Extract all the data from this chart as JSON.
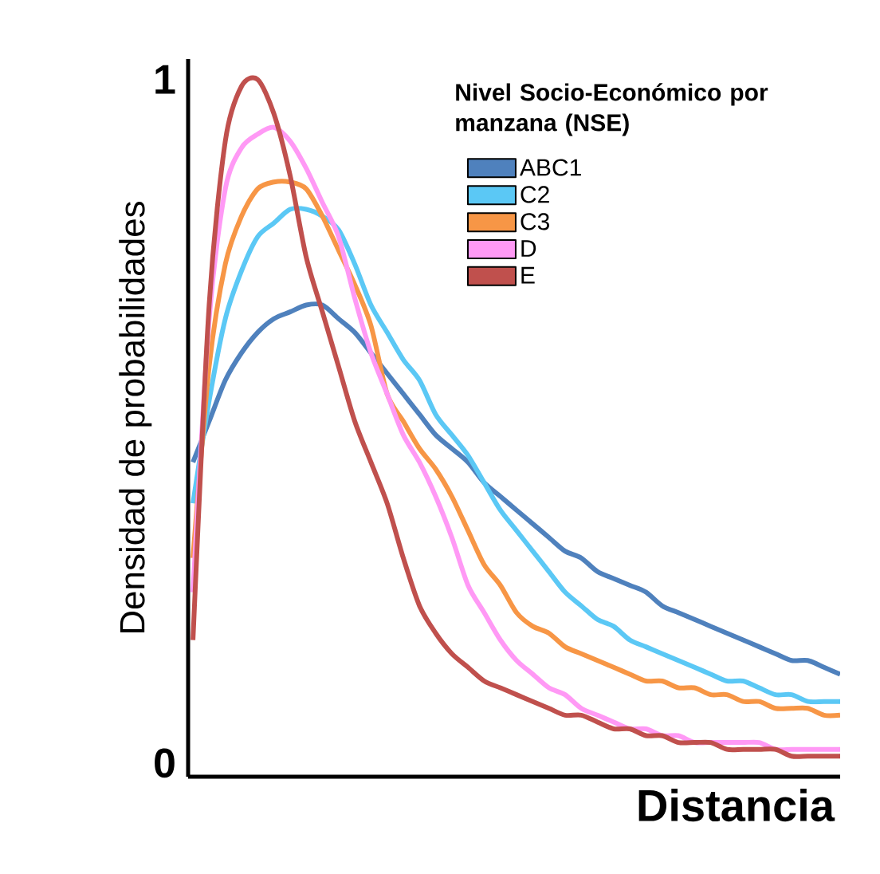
{
  "chart_data": {
    "type": "line",
    "ylabel": "Densidad de probabilidades",
    "xlabel": "Distancia",
    "legend_title": "**Nivel Socio-Económico por manzana (NSE)**",
    "legend": "top right",
    "ylim": [
      -0.02,
      1.03
    ],
    "yticks": [
      0,
      1
    ],
    "grid": false,
    "marker": "none",
    "line_style": "solid",
    "categories": [
      null,
      null,
      null,
      null,
      null,
      null,
      null,
      null,
      null,
      null,
      null,
      null,
      null,
      null,
      null,
      null,
      null,
      null,
      null,
      null,
      null,
      null,
      null,
      null,
      null,
      null,
      null,
      null,
      null,
      null,
      null,
      null,
      null,
      null,
      null,
      null,
      null,
      null,
      null,
      null,
      null
    ],
    "series": [
      {
        "name": "ABC1",
        "color": "#4f81bd",
        "values": [
          0.44,
          0.5,
          0.56,
          0.6,
          0.63,
          0.65,
          0.66,
          0.67,
          0.67,
          0.65,
          0.63,
          0.6,
          0.57,
          0.54,
          0.51,
          0.48,
          0.46,
          0.44,
          0.41,
          0.39,
          0.37,
          0.35,
          0.33,
          0.31,
          0.3,
          0.28,
          0.27,
          0.26,
          0.25,
          0.23,
          0.22,
          0.21,
          0.2,
          0.19,
          0.18,
          0.17,
          0.16,
          0.15,
          0.15,
          0.14,
          0.13
        ]
      },
      {
        "name": "C2",
        "color": "#5bc8f5",
        "values": [
          0.38,
          0.53,
          0.65,
          0.72,
          0.77,
          0.79,
          0.81,
          0.81,
          0.8,
          0.78,
          0.73,
          0.67,
          0.63,
          0.59,
          0.56,
          0.51,
          0.48,
          0.45,
          0.41,
          0.37,
          0.34,
          0.31,
          0.28,
          0.25,
          0.23,
          0.21,
          0.2,
          0.18,
          0.17,
          0.16,
          0.15,
          0.14,
          0.13,
          0.12,
          0.12,
          0.11,
          0.1,
          0.1,
          0.09,
          0.09,
          0.09
        ]
      },
      {
        "name": "C3",
        "color": "#f79646",
        "values": [
          0.3,
          0.58,
          0.73,
          0.8,
          0.84,
          0.85,
          0.85,
          0.84,
          0.8,
          0.75,
          0.7,
          0.64,
          0.54,
          0.5,
          0.46,
          0.43,
          0.39,
          0.34,
          0.29,
          0.26,
          0.22,
          0.2,
          0.19,
          0.17,
          0.16,
          0.15,
          0.14,
          0.13,
          0.12,
          0.12,
          0.11,
          0.11,
          0.1,
          0.1,
          0.09,
          0.09,
          0.08,
          0.08,
          0.08,
          0.07,
          0.07
        ]
      },
      {
        "name": "D",
        "color": "#ff99f5",
        "values": [
          0.25,
          0.65,
          0.84,
          0.9,
          0.92,
          0.93,
          0.91,
          0.87,
          0.82,
          0.77,
          0.68,
          0.6,
          0.54,
          0.48,
          0.44,
          0.39,
          0.33,
          0.26,
          0.22,
          0.18,
          0.15,
          0.13,
          0.11,
          0.1,
          0.08,
          0.07,
          0.06,
          0.05,
          0.05,
          0.04,
          0.04,
          0.03,
          0.03,
          0.03,
          0.03,
          0.03,
          0.02,
          0.02,
          0.02,
          0.02,
          0.02
        ]
      },
      {
        "name": "E",
        "color": "#c0504d",
        "values": [
          0.18,
          0.67,
          0.91,
          0.99,
          1.0,
          0.95,
          0.86,
          0.74,
          0.66,
          0.58,
          0.5,
          0.44,
          0.38,
          0.3,
          0.23,
          0.19,
          0.16,
          0.14,
          0.12,
          0.11,
          0.1,
          0.09,
          0.08,
          0.07,
          0.07,
          0.06,
          0.05,
          0.05,
          0.04,
          0.04,
          0.03,
          0.03,
          0.03,
          0.02,
          0.02,
          0.02,
          0.02,
          0.01,
          0.01,
          0.01,
          0.01
        ]
      }
    ]
  }
}
